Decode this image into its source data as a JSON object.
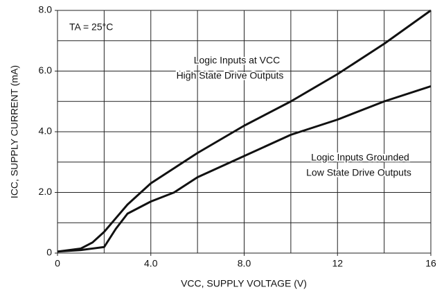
{
  "chart_data": {
    "type": "line",
    "xlabel": "VCC, SUPPLY VOLTAGE (V)",
    "ylabel": "ICC, SUPPLY CURRENT (mA)",
    "annotations": [
      "TA = 25°C",
      "Logic Inputs at VCC",
      "High State Drive Outputs",
      "Logic Inputs Grounded",
      "Low State Drive Outputs"
    ],
    "xlim": [
      0,
      16
    ],
    "ylim": [
      0,
      8
    ],
    "xticks": [
      0,
      {
        "value": 4,
        "label": "4.0"
      },
      {
        "value": 8,
        "label": "8.0"
      },
      12,
      16
    ],
    "yticks": [
      0,
      {
        "value": 2,
        "label": "2.0"
      },
      {
        "value": 4,
        "label": "4.0"
      },
      {
        "value": 6,
        "label": "6.0"
      },
      {
        "value": 8,
        "label": "8.0"
      }
    ],
    "xgrid": [
      0,
      2,
      4,
      6,
      8,
      10,
      12,
      14,
      16
    ],
    "ygrid": [
      0,
      1,
      2,
      3,
      4,
      5,
      6,
      7,
      8
    ],
    "grid": true,
    "series": [
      {
        "name": "Logic Inputs at VCC",
        "color": "#111111",
        "x": [
          0,
          1,
          1.5,
          2,
          2.5,
          3,
          4,
          5,
          6,
          8,
          10,
          12,
          14,
          16
        ],
        "values": [
          0.05,
          0.15,
          0.35,
          0.7,
          1.15,
          1.6,
          2.3,
          2.8,
          3.3,
          4.2,
          5.0,
          5.9,
          6.9,
          8.0
        ]
      },
      {
        "name": "Logic Inputs Grounded",
        "color": "#111111",
        "x": [
          0,
          1,
          1.5,
          2,
          2.5,
          3,
          4,
          5,
          6,
          8,
          10,
          12,
          14,
          16
        ],
        "values": [
          0.05,
          0.1,
          0.15,
          0.2,
          0.8,
          1.3,
          1.7,
          2.0,
          2.5,
          3.2,
          3.9,
          4.4,
          5.0,
          5.5
        ]
      }
    ]
  }
}
